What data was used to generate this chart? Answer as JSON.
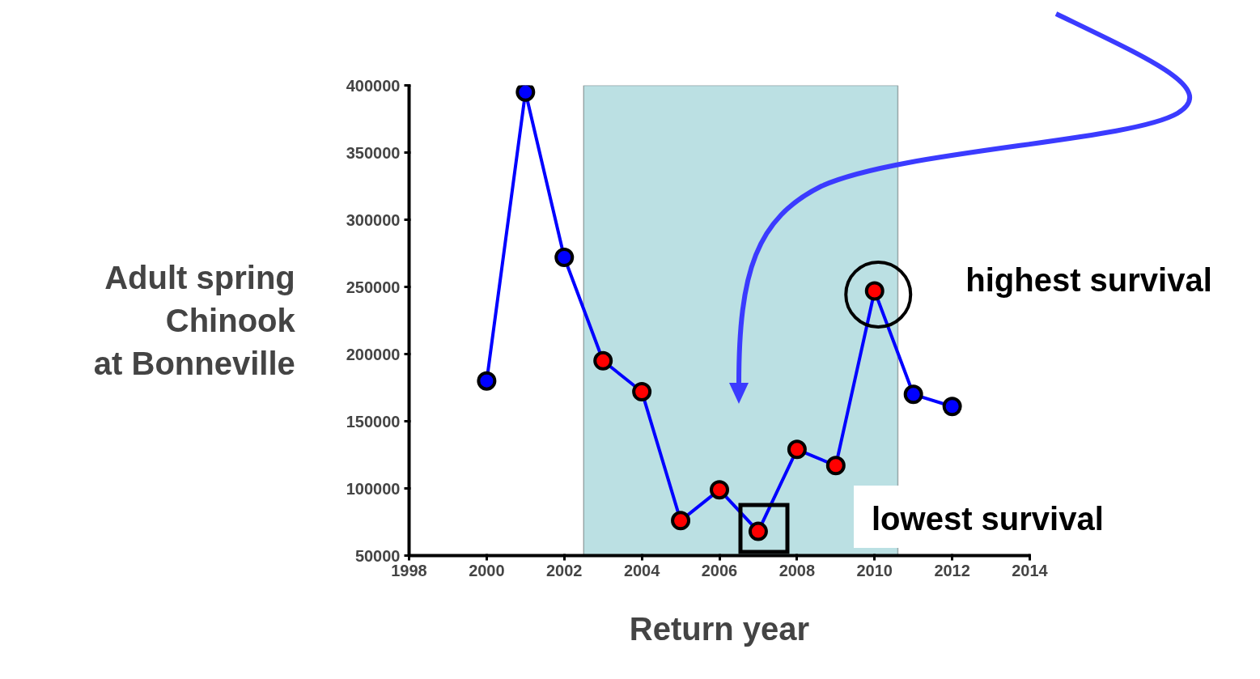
{
  "chart_data": {
    "type": "line",
    "xlabel": "Return year",
    "ylabel": "Adult spring\nChinook\nat Bonneville",
    "x": [
      2000,
      2001,
      2002,
      2003,
      2004,
      2005,
      2006,
      2007,
      2008,
      2009,
      2010,
      2011,
      2012
    ],
    "series": [
      {
        "color": "#0000ff",
        "values": [
          180000,
          395000,
          272000,
          195000,
          172000,
          76000,
          99000,
          68000,
          129000,
          117000,
          247000,
          170000,
          161000
        ],
        "colors": [
          "#0000ff",
          "#0000ff",
          "#0000ff",
          "#ff0000",
          "#ff0000",
          "#ff0000",
          "#ff0000",
          "#ff0000",
          "#ff0000",
          "#ff0000",
          "#ff0000",
          "#0000ff",
          "#0000ff"
        ]
      }
    ],
    "xlim": [
      1998,
      2014
    ],
    "xticks": [
      1998,
      2000,
      2002,
      2004,
      2006,
      2008,
      2010,
      2012,
      2014
    ],
    "ylim": [
      50000,
      400000
    ],
    "yticks": [
      50000,
      100000,
      150000,
      200000,
      250000,
      300000,
      350000,
      400000
    ],
    "bands": [
      {
        "axis": "x",
        "from": 2002.5,
        "to": 2010.6,
        "color": "#bbe0e3"
      }
    ],
    "annotations": [
      {
        "text": "highest survival",
        "x": 2010,
        "y": 247000
      },
      "lowest survival"
    ],
    "marker": "circle",
    "line_style": "solid",
    "grid": false
  }
}
